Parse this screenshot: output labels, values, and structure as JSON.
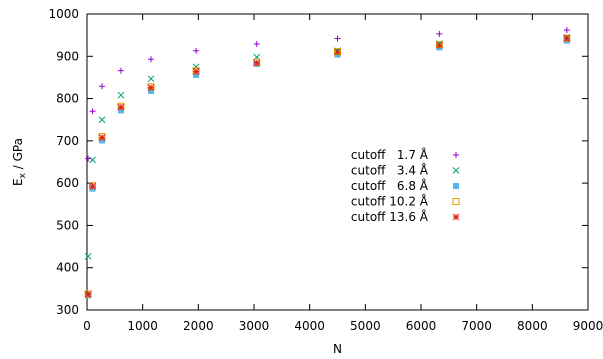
{
  "chart_data": {
    "type": "scatter",
    "xlabel": "N",
    "ylabel_main": "E",
    "ylabel_sub": "x",
    "ylabel_rest": " / GPa",
    "xlim": [
      0,
      9000
    ],
    "ylim": [
      300,
      1000
    ],
    "xticks": [
      0,
      1000,
      2000,
      3000,
      4000,
      5000,
      6000,
      7000,
      8000,
      9000
    ],
    "yticks": [
      300,
      400,
      500,
      600,
      700,
      800,
      900,
      1000
    ],
    "grid": false,
    "legend_position": "right-center",
    "series": [
      {
        "name": "cutoff   1.7 Å",
        "marker": "plus",
        "color": "#9400d3",
        "points": [
          [
            20,
            658
          ],
          [
            100,
            770
          ],
          [
            270,
            829
          ],
          [
            610,
            866
          ],
          [
            1150,
            893
          ],
          [
            1960,
            913
          ],
          [
            3050,
            929
          ],
          [
            4500,
            942
          ],
          [
            6330,
            953
          ],
          [
            8620,
            962
          ]
        ]
      },
      {
        "name": "cutoff   3.4 Å",
        "marker": "x",
        "color": "#009e73",
        "points": [
          [
            20,
            427
          ],
          [
            100,
            655
          ],
          [
            270,
            750
          ],
          [
            610,
            808
          ],
          [
            1150,
            847
          ],
          [
            1960,
            875
          ],
          [
            3050,
            898
          ],
          [
            4500,
            913
          ],
          [
            6330,
            930
          ],
          [
            8620,
            945
          ]
        ]
      },
      {
        "name": "cutoff   6.8 Å",
        "marker": "square-filled",
        "color": "#56b4e9",
        "points": [
          [
            20,
            335
          ],
          [
            100,
            587
          ],
          [
            270,
            701
          ],
          [
            610,
            772
          ],
          [
            1150,
            818
          ],
          [
            1960,
            856
          ],
          [
            3050,
            882
          ],
          [
            4500,
            904
          ],
          [
            6330,
            921
          ],
          [
            8620,
            937
          ]
        ]
      },
      {
        "name": "cutoff 10.2 Å",
        "marker": "square-open",
        "color": "#e69f00",
        "points": [
          [
            20,
            338
          ],
          [
            100,
            594
          ],
          [
            270,
            710
          ],
          [
            610,
            782
          ],
          [
            1150,
            828
          ],
          [
            1960,
            866
          ],
          [
            3050,
            886
          ],
          [
            4500,
            911
          ],
          [
            6330,
            928
          ],
          [
            8620,
            943
          ]
        ]
      },
      {
        "name": "cutoff 13.6 Å",
        "marker": "star",
        "color": "#e51e10",
        "points": [
          [
            20,
            337
          ],
          [
            100,
            593
          ],
          [
            270,
            708
          ],
          [
            610,
            780
          ],
          [
            1150,
            826
          ],
          [
            1960,
            864
          ],
          [
            3050,
            884
          ],
          [
            4500,
            910
          ],
          [
            6330,
            926
          ],
          [
            8620,
            942
          ]
        ]
      }
    ]
  }
}
